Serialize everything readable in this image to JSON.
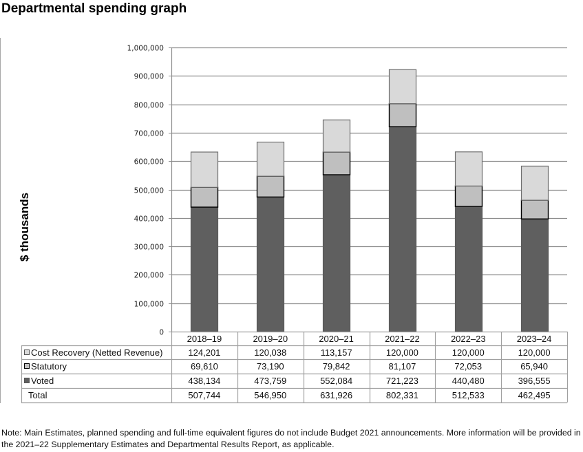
{
  "page_title": "Departmental spending graph",
  "note": "Note: Main Estimates, planned spending and full-time equivalent figures do not include Budget 2021 announcements. More information will be provided in the 2021–22 Supplementary Estimates and Departmental Results Report, as applicable.",
  "chart_data": {
    "type": "bar",
    "stacked": true,
    "title": "Departmental spending graph",
    "xlabel": "",
    "ylabel": "$ thousands",
    "ylim": [
      0,
      1000000
    ],
    "yticks": [
      0,
      100000,
      200000,
      300000,
      400000,
      500000,
      600000,
      700000,
      800000,
      900000,
      1000000
    ],
    "ytick_labels": [
      "0",
      "100,000",
      "200,000",
      "300,000",
      "400,000",
      "500,000",
      "600,000",
      "700,000",
      "800,000",
      "900,000",
      "1,000,000"
    ],
    "grid": true,
    "categories": [
      "2018–19",
      "2019–20",
      "2020–21",
      "2021–22",
      "2022–23",
      "2023–24"
    ],
    "series": [
      {
        "name": "Voted",
        "color": "#5f5f5f",
        "values": [
          438134,
          473759,
          552084,
          721223,
          440480,
          396555
        ],
        "labels": [
          "438,134",
          "473,759",
          "552,084",
          "721,223",
          "440,480",
          "396,555"
        ]
      },
      {
        "name": "Statutory",
        "color": "#bfbfbf",
        "values": [
          69610,
          73190,
          79842,
          81107,
          72053,
          65940
        ],
        "labels": [
          "69,610",
          "73,190",
          "79,842",
          "81,107",
          "72,053",
          "65,940"
        ]
      },
      {
        "name": "Cost Recovery (Netted Revenue)",
        "color": "#d9d9d9",
        "values": [
          124201,
          120038,
          113157,
          120000,
          120000,
          120000
        ],
        "labels": [
          "124,201",
          "120,038",
          "113,157",
          "120,000",
          "120,000",
          "120,000"
        ]
      }
    ],
    "table_rows_order": [
      "Cost Recovery (Netted Revenue)",
      "Statutory",
      "Voted"
    ],
    "total": {
      "name": "Total",
      "values": [
        507744,
        546950,
        631926,
        802331,
        512533,
        462495
      ],
      "labels": [
        "507,744",
        "546,950",
        "631,926",
        "802,331",
        "512,533",
        "462,495"
      ]
    },
    "legend": "data-table-left"
  }
}
